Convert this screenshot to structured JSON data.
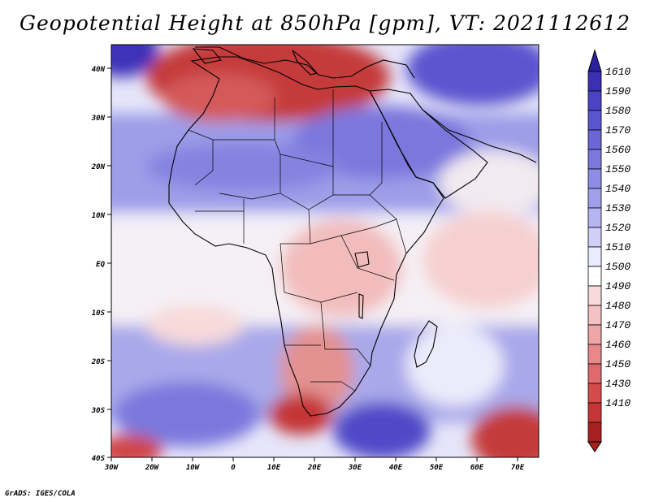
{
  "map": {
    "title": "Geopotential Height at 850hPa [gpm], VT: 2021112612",
    "credit": "GrADS: IGES/COLA",
    "variable": "Geopotential Height",
    "level": "850hPa",
    "units": "gpm",
    "valid_time": "2021112612",
    "region": "Africa",
    "extent": {
      "lon": [
        -30,
        76
      ],
      "lat": [
        -40,
        45
      ]
    },
    "lon_labels": [
      "30W",
      "20W",
      "10W",
      "0",
      "10E",
      "20E",
      "30E",
      "40E",
      "50E",
      "60E",
      "70E"
    ],
    "lat_labels": [
      "40N",
      "30N",
      "20N",
      "10N",
      "EQ",
      "10S",
      "20S",
      "30S",
      "40S"
    ]
  },
  "colorbar": {
    "labels": [
      "1610",
      "1590",
      "1580",
      "1570",
      "1560",
      "1550",
      "1540",
      "1530",
      "1520",
      "1510",
      "1500",
      "1490",
      "1480",
      "1470",
      "1460",
      "1450",
      "1430",
      "1410"
    ],
    "colors": [
      "#3b2fb3",
      "#4a43c6",
      "#5a56cf",
      "#6a66d8",
      "#7b79df",
      "#8d8ce6",
      "#a09fec",
      "#b5b5f2",
      "#cfcff8",
      "#ececff",
      "#ffffff",
      "#f8dada",
      "#f3c2c2",
      "#eea6a6",
      "#e88888",
      "#e06a6a",
      "#d54b4b",
      "#c43535",
      "#a82121"
    ],
    "arrow_top_color": "#2a1f9c",
    "arrow_bottom_color": "#a82121"
  }
}
